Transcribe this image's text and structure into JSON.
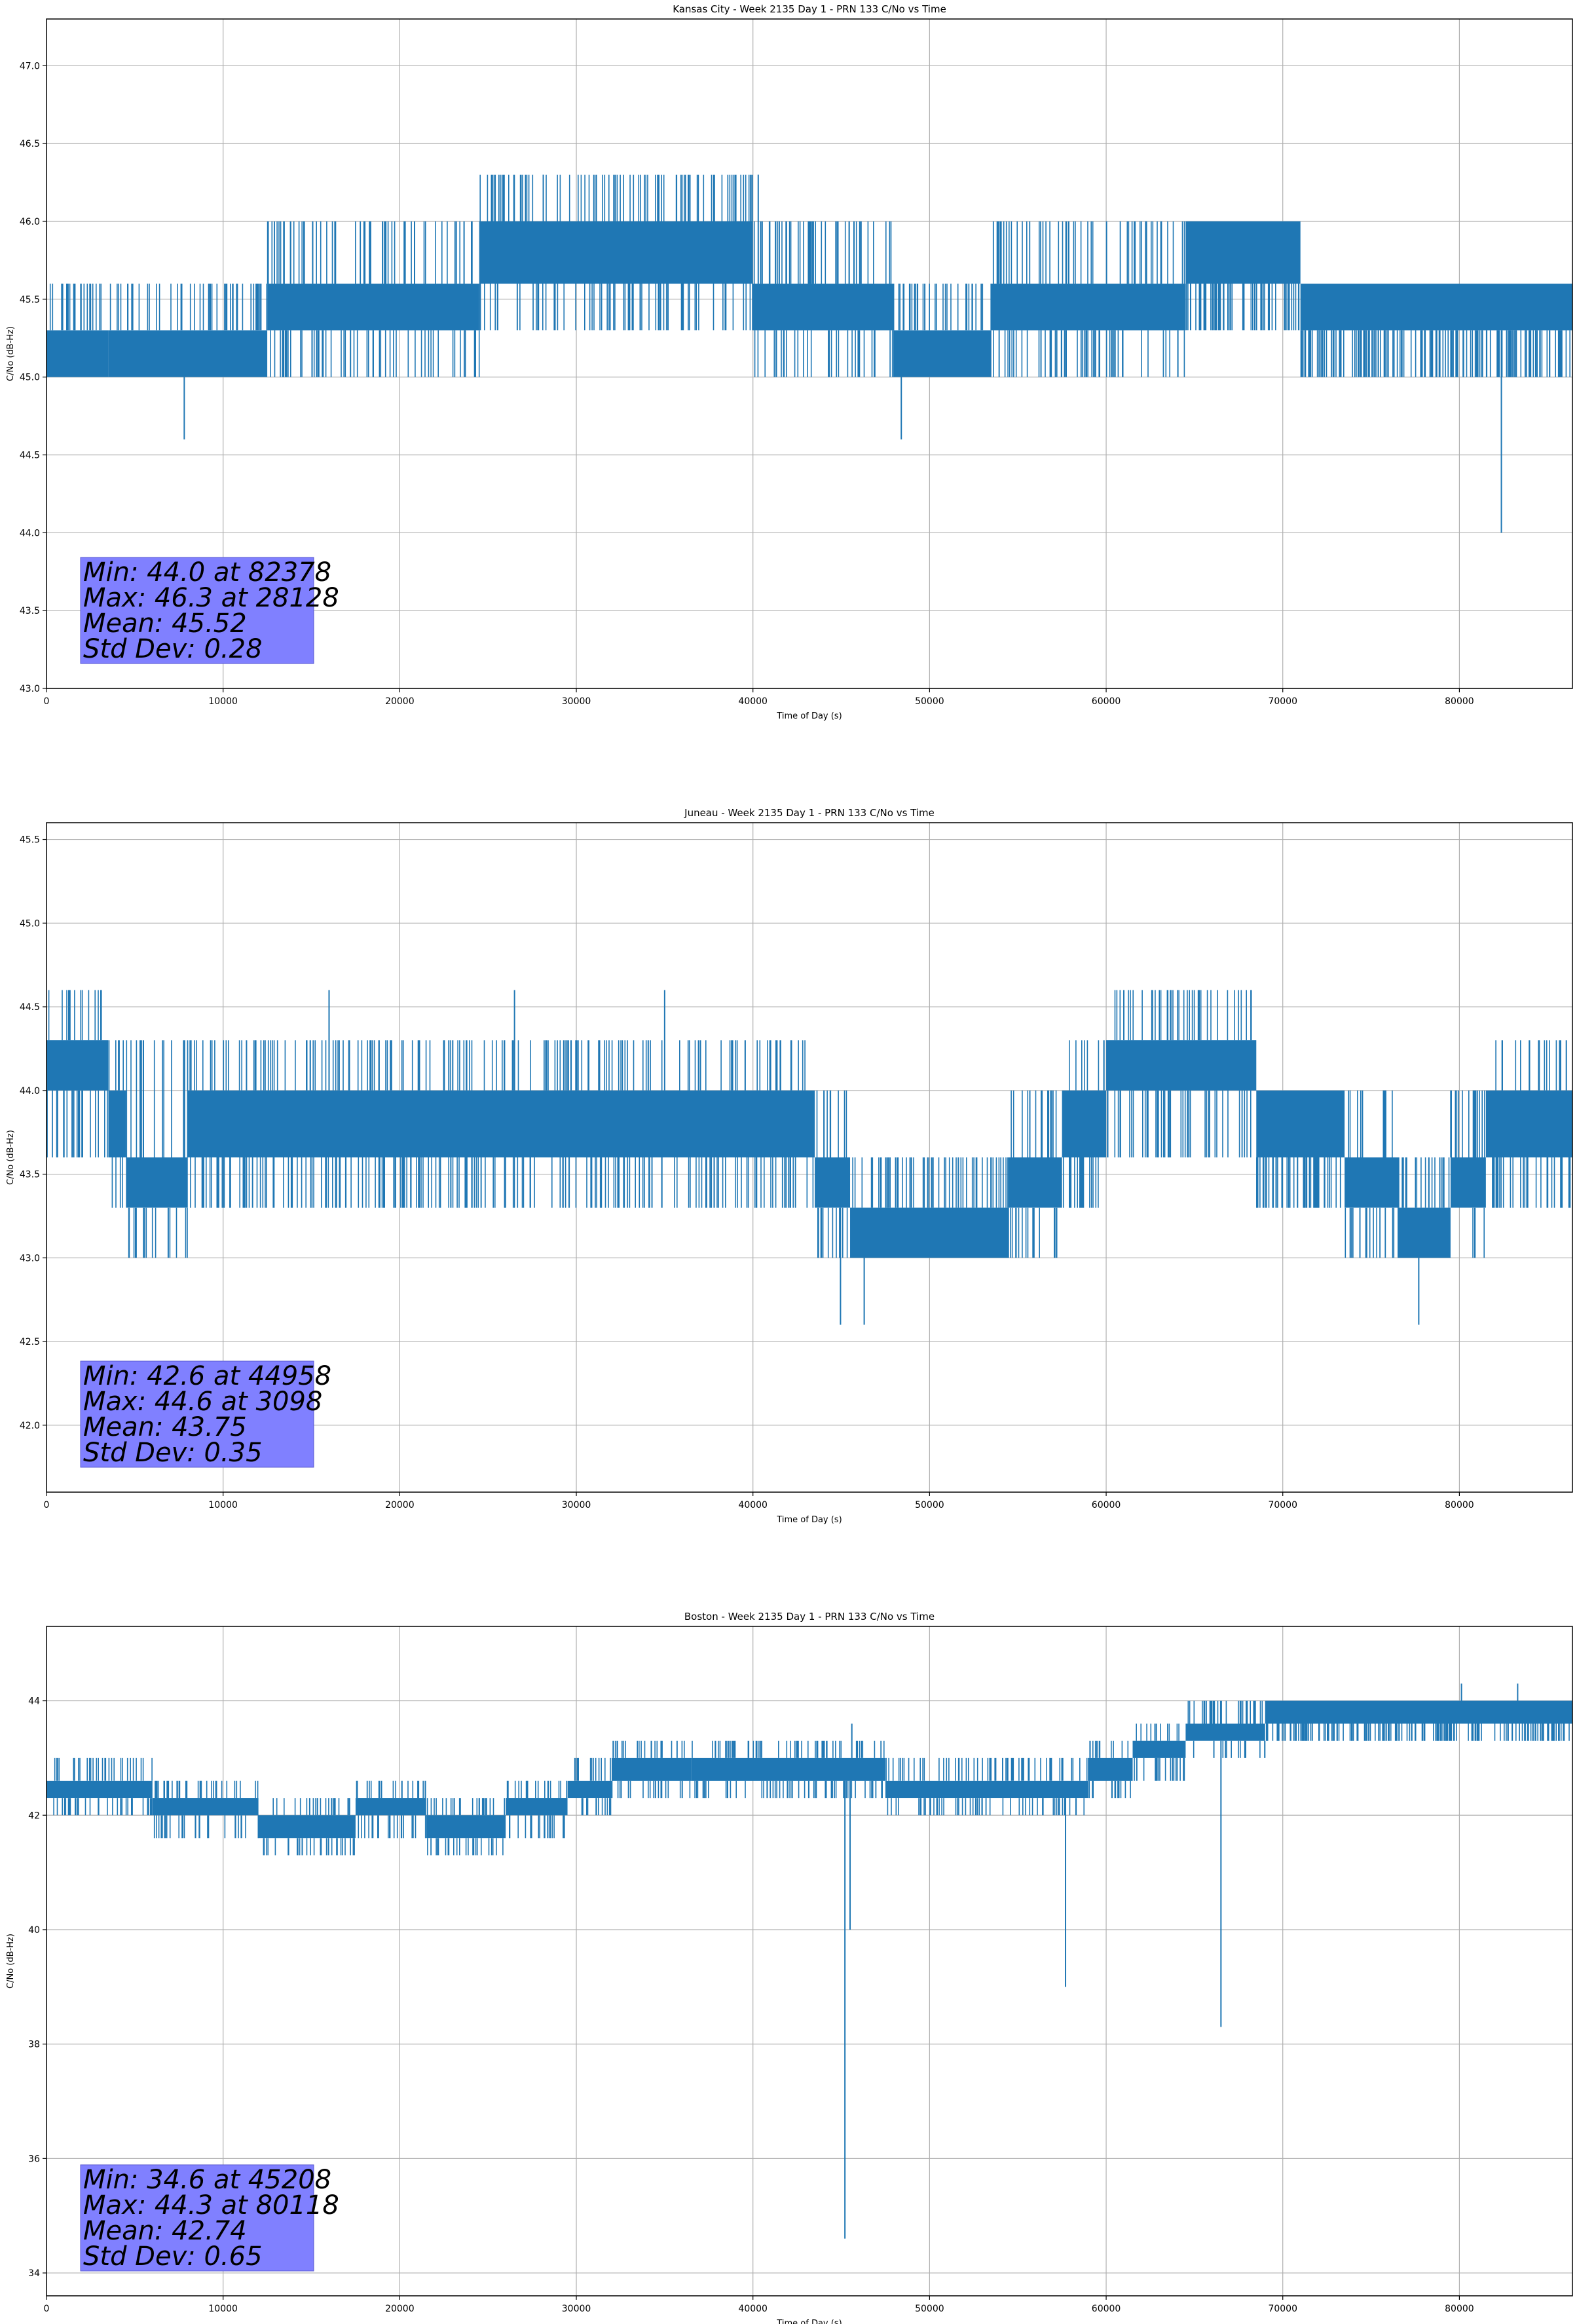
{
  "figure": {
    "background": "#ffffff"
  },
  "colors": {
    "series": "#1f77b4",
    "grid": "#b0b0b0",
    "stats_box": "#8080ff",
    "frame": "#000000"
  },
  "chart_data": [
    {
      "type": "line",
      "title": "Kansas City - Week 2135 Day 1 - PRN 133 C/No vs Time",
      "xlabel": "Time of Day (s)",
      "ylabel": "C/No (dB-Hz)",
      "xlim": [
        0,
        86400
      ],
      "ylim": [
        43.0,
        47.3
      ],
      "xticks": [
        0,
        10000,
        20000,
        30000,
        40000,
        50000,
        60000,
        70000,
        80000
      ],
      "yticks": [
        43.0,
        43.5,
        44.0,
        44.5,
        45.0,
        45.5,
        46.0,
        46.5,
        47.0
      ],
      "ytick_format": "0.0",
      "grid": true,
      "series_color": "#1f77b4",
      "segments": [
        {
          "x": [
            0,
            3500
          ],
          "lo": 45.0,
          "hi": 45.3,
          "band_lo": 45.0,
          "band_hi": 45.6,
          "step": 0.3
        },
        {
          "x": [
            3500,
            12500
          ],
          "lo": 45.0,
          "hi": 45.3,
          "band_lo": 45.0,
          "band_hi": 45.6,
          "step": 0.3
        },
        {
          "x": [
            12500,
            24500
          ],
          "lo": 45.3,
          "hi": 45.6,
          "band_lo": 45.0,
          "band_hi": 46.0,
          "step": 0.3
        },
        {
          "x": [
            24500,
            40000
          ],
          "lo": 45.6,
          "hi": 46.0,
          "band_lo": 45.3,
          "band_hi": 46.3,
          "step": 0.3
        },
        {
          "x": [
            40000,
            48000
          ],
          "lo": 45.3,
          "hi": 45.6,
          "band_lo": 45.0,
          "band_hi": 46.0,
          "step": 0.3
        },
        {
          "x": [
            48000,
            53500
          ],
          "lo": 45.0,
          "hi": 45.3,
          "band_lo": 45.0,
          "band_hi": 45.6,
          "step": 0.3
        },
        {
          "x": [
            53500,
            64500
          ],
          "lo": 45.3,
          "hi": 45.6,
          "band_lo": 45.0,
          "band_hi": 46.0,
          "step": 0.3
        },
        {
          "x": [
            64500,
            71000
          ],
          "lo": 45.6,
          "hi": 46.0,
          "band_lo": 45.3,
          "band_hi": 46.0,
          "step": 0.3
        },
        {
          "x": [
            71000,
            86400
          ],
          "lo": 45.3,
          "hi": 45.6,
          "band_lo": 45.0,
          "band_hi": 45.6,
          "step": 0.3
        }
      ],
      "spikes": [
        [
          7800,
          44.6
        ],
        [
          48400,
          44.6
        ],
        [
          82378,
          44.0
        ],
        [
          28128,
          46.3
        ],
        [
          40300,
          46.3
        ]
      ],
      "stats": [
        "Min: 44.0 at 82378",
        "Max: 46.3 at 28128",
        "Mean: 45.52",
        "Std Dev: 0.28"
      ]
    },
    {
      "type": "line",
      "title": "Juneau - Week 2135 Day 1 - PRN 133 C/No vs Time",
      "xlabel": "Time of Day (s)",
      "ylabel": "C/No (dB-Hz)",
      "xlim": [
        0,
        86400
      ],
      "ylim": [
        41.6,
        45.6
      ],
      "xticks": [
        0,
        10000,
        20000,
        30000,
        40000,
        50000,
        60000,
        70000,
        80000
      ],
      "yticks": [
        42.0,
        42.5,
        43.0,
        43.5,
        44.0,
        44.5,
        45.0,
        45.5
      ],
      "ytick_format": "0.0",
      "grid": true,
      "series_color": "#1f77b4",
      "segments": [
        {
          "x": [
            0,
            3500
          ],
          "lo": 44.0,
          "hi": 44.3,
          "band_lo": 43.6,
          "band_hi": 44.6,
          "step": 0.3
        },
        {
          "x": [
            3500,
            4500
          ],
          "lo": 43.6,
          "hi": 44.0,
          "band_lo": 43.3,
          "band_hi": 44.3,
          "step": 0.3
        },
        {
          "x": [
            4500,
            8000
          ],
          "lo": 43.3,
          "hi": 43.6,
          "band_lo": 43.0,
          "band_hi": 44.3,
          "step": 0.3
        },
        {
          "x": [
            8000,
            43500
          ],
          "lo": 43.6,
          "hi": 44.0,
          "band_lo": 43.3,
          "band_hi": 44.3,
          "step": 0.3
        },
        {
          "x": [
            43500,
            45500
          ],
          "lo": 43.3,
          "hi": 43.6,
          "band_lo": 43.0,
          "band_hi": 44.0,
          "step": 0.3
        },
        {
          "x": [
            45500,
            54500
          ],
          "lo": 43.0,
          "hi": 43.3,
          "band_lo": 43.0,
          "band_hi": 43.6,
          "step": 0.3
        },
        {
          "x": [
            54500,
            57500
          ],
          "lo": 43.3,
          "hi": 43.6,
          "band_lo": 43.0,
          "band_hi": 44.0,
          "step": 0.3
        },
        {
          "x": [
            57500,
            60000
          ],
          "lo": 43.6,
          "hi": 44.0,
          "band_lo": 43.3,
          "band_hi": 44.3,
          "step": 0.3
        },
        {
          "x": [
            60000,
            68500
          ],
          "lo": 44.0,
          "hi": 44.3,
          "band_lo": 43.6,
          "band_hi": 44.6,
          "step": 0.3
        },
        {
          "x": [
            68500,
            73500
          ],
          "lo": 43.6,
          "hi": 44.0,
          "band_lo": 43.3,
          "band_hi": 44.0,
          "step": 0.3
        },
        {
          "x": [
            73500,
            76500
          ],
          "lo": 43.3,
          "hi": 43.6,
          "band_lo": 43.0,
          "band_hi": 44.0,
          "step": 0.3
        },
        {
          "x": [
            76500,
            79500
          ],
          "lo": 43.0,
          "hi": 43.3,
          "band_lo": 43.0,
          "band_hi": 43.6,
          "step": 0.3
        },
        {
          "x": [
            79500,
            81500
          ],
          "lo": 43.3,
          "hi": 43.6,
          "band_lo": 43.0,
          "band_hi": 44.0,
          "step": 0.3
        },
        {
          "x": [
            81500,
            86400
          ],
          "lo": 43.6,
          "hi": 44.0,
          "band_lo": 43.3,
          "band_hi": 44.3,
          "step": 0.3
        }
      ],
      "spikes": [
        [
          3098,
          44.6
        ],
        [
          16000,
          44.6
        ],
        [
          26500,
          44.6
        ],
        [
          35000,
          44.6
        ],
        [
          44958,
          42.6
        ],
        [
          46300,
          42.6
        ],
        [
          77700,
          42.6
        ],
        [
          61000,
          44.6
        ]
      ],
      "stats": [
        "Min: 42.6 at 44958",
        "Max: 44.6 at 3098",
        "Mean: 43.75",
        "Std Dev: 0.35"
      ]
    },
    {
      "type": "line",
      "title": "Boston - Week 2135 Day 1 - PRN 133 C/No vs Time",
      "xlabel": "Time of Day (s)",
      "ylabel": "C/No (dB-Hz)",
      "xlim": [
        0,
        86400
      ],
      "ylim": [
        33.6,
        45.3
      ],
      "xticks": [
        0,
        10000,
        20000,
        30000,
        40000,
        50000,
        60000,
        70000,
        80000
      ],
      "yticks": [
        34,
        36,
        38,
        40,
        42,
        44
      ],
      "ytick_format": "0",
      "grid": true,
      "series_color": "#1f77b4",
      "segments": [
        {
          "x": [
            0,
            6000
          ],
          "lo": 42.3,
          "hi": 42.6,
          "band_lo": 42.0,
          "band_hi": 43.0,
          "step": 0.3
        },
        {
          "x": [
            6000,
            12000
          ],
          "lo": 42.0,
          "hi": 42.3,
          "band_lo": 41.6,
          "band_hi": 42.6,
          "step": 0.3
        },
        {
          "x": [
            12000,
            17500
          ],
          "lo": 41.6,
          "hi": 42.0,
          "band_lo": 41.3,
          "band_hi": 42.3,
          "step": 0.3
        },
        {
          "x": [
            17500,
            21500
          ],
          "lo": 42.0,
          "hi": 42.3,
          "band_lo": 41.6,
          "band_hi": 42.6,
          "step": 0.3
        },
        {
          "x": [
            21500,
            26000
          ],
          "lo": 41.6,
          "hi": 42.0,
          "band_lo": 41.3,
          "band_hi": 42.3,
          "step": 0.3
        },
        {
          "x": [
            26000,
            29500
          ],
          "lo": 42.0,
          "hi": 42.3,
          "band_lo": 41.6,
          "band_hi": 42.6,
          "step": 0.3
        },
        {
          "x": [
            29500,
            32000
          ],
          "lo": 42.3,
          "hi": 42.6,
          "band_lo": 42.0,
          "band_hi": 43.0,
          "step": 0.3
        },
        {
          "x": [
            32000,
            36500
          ],
          "lo": 42.6,
          "hi": 43.0,
          "band_lo": 42.3,
          "band_hi": 43.3,
          "step": 0.3
        },
        {
          "x": [
            36500,
            47500
          ],
          "lo": 42.6,
          "hi": 43.0,
          "band_lo": 42.3,
          "band_hi": 43.3,
          "step": 0.3
        },
        {
          "x": [
            47500,
            59000
          ],
          "lo": 42.3,
          "hi": 42.6,
          "band_lo": 42.0,
          "band_hi": 43.0,
          "step": 0.3
        },
        {
          "x": [
            59000,
            61500
          ],
          "lo": 42.6,
          "hi": 43.0,
          "band_lo": 42.3,
          "band_hi": 43.3,
          "step": 0.3
        },
        {
          "x": [
            61500,
            64500
          ],
          "lo": 43.0,
          "hi": 43.3,
          "band_lo": 42.6,
          "band_hi": 43.6,
          "step": 0.3
        },
        {
          "x": [
            64500,
            69000
          ],
          "lo": 43.3,
          "hi": 43.6,
          "band_lo": 43.0,
          "band_hi": 44.0,
          "step": 0.3
        },
        {
          "x": [
            69000,
            86400
          ],
          "lo": 43.6,
          "hi": 44.0,
          "band_lo": 43.3,
          "band_hi": 44.0,
          "step": 0.3
        }
      ],
      "spikes": [
        [
          45208,
          34.6
        ],
        [
          45500,
          40.0
        ],
        [
          57700,
          39.0
        ],
        [
          66500,
          38.3
        ],
        [
          80118,
          44.3
        ],
        [
          83300,
          44.3
        ],
        [
          45600,
          43.6
        ],
        [
          34800,
          43.3
        ]
      ],
      "stats": [
        "Min: 34.6 at 45208",
        "Max: 44.3 at 80118",
        "Mean: 42.74",
        "Std Dev: 0.65"
      ]
    }
  ]
}
